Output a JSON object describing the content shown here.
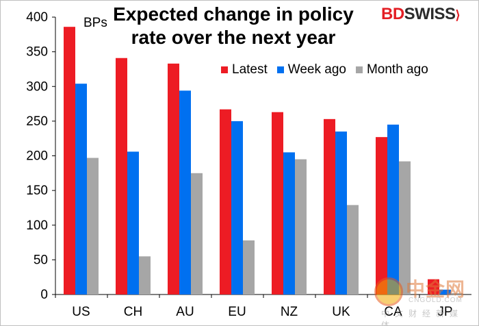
{
  "chart_data": {
    "type": "bar",
    "title_lines": [
      "Expected change in policy",
      "rate over the next year"
    ],
    "ylabel": "BPs",
    "xlabel": "",
    "ylim": [
      0,
      400
    ],
    "yticks": [
      0,
      50,
      100,
      150,
      200,
      250,
      300,
      350,
      400
    ],
    "categories": [
      "US",
      "CH",
      "AU",
      "EU",
      "NZ",
      "UK",
      "CA",
      "JP"
    ],
    "series": [
      {
        "name": "Latest",
        "color": "#ed1c24",
        "values": [
          386,
          341,
          333,
          267,
          263,
          253,
          227,
          22
        ]
      },
      {
        "name": "Week ago",
        "color": "#0070f0",
        "values": [
          304,
          206,
          294,
          250,
          205,
          235,
          245,
          7
        ]
      },
      {
        "name": "Month ago",
        "color": "#a6a6a6",
        "values": [
          197,
          55,
          175,
          78,
          195,
          129,
          192,
          2
        ]
      }
    ],
    "legend_position": "top-right",
    "grid": false
  },
  "branding": {
    "logo_bd": "BD",
    "logo_swiss": "SWISS",
    "logo_mark": "⟩",
    "watermark_cn": "中金网",
    "watermark_en": "CNGOLD.COM",
    "watermark_sub": "中文财经新媒体"
  }
}
